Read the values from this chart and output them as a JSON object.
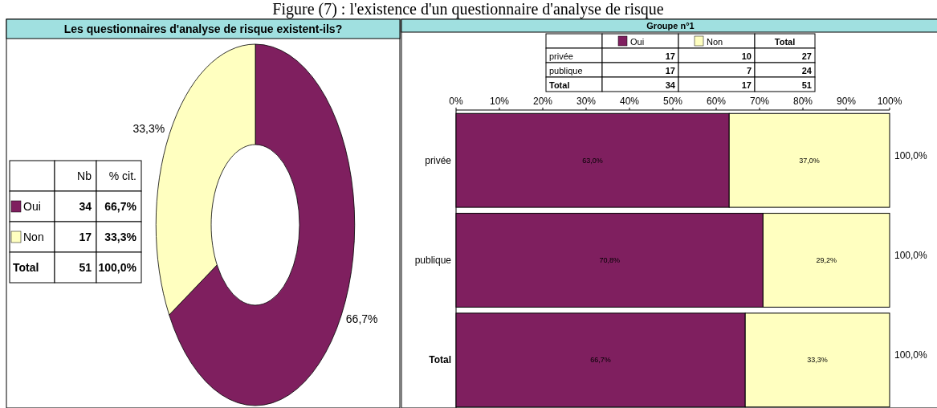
{
  "chart_data": [
    {
      "type": "donut",
      "title": "Les questionnaires d'analyse de risque existent-ils?",
      "categories": [
        "Oui",
        "Non"
      ],
      "values": [
        66.7,
        33.3
      ],
      "colors": [
        "#7f1f5f",
        "#ffffc0"
      ],
      "value_labels": [
        "66,7%",
        "33,3%"
      ],
      "totals": [
        "100,0%"
      ],
      "legend": "left",
      "annotations": [
        "Figure (7) : l'existence d'un questionnaire d'analyse de risque",
        "Nb",
        "% cit.",
        "34",
        "17",
        "Total",
        "51"
      ]
    },
    {
      "type": "bar",
      "title": "Groupe n°1",
      "orientation": "horizontal",
      "stacked": true,
      "categories": [
        "privée",
        "publique",
        "Total"
      ],
      "legend": "top",
      "series": [
        {
          "name": "Oui",
          "color": "#7f1f5f",
          "values": [
            63.0,
            70.8,
            66.7
          ],
          "value_labels": [
            "63,0%",
            "70,8%",
            "66,7%"
          ]
        },
        {
          "name": "Non",
          "color": "#ffffc0",
          "values": [
            37.0,
            29.2,
            33.3
          ],
          "value_labels": [
            "37,0%",
            "29,2%",
            "33,3%"
          ]
        }
      ],
      "totals": [
        "100,0%",
        "100,0%",
        "100,0%"
      ],
      "xlim": [
        0,
        100
      ],
      "xticks": [
        {
          "value": 0,
          "label": "0%"
        },
        {
          "value": 10,
          "label": "10%"
        },
        {
          "value": 20,
          "label": "20%"
        },
        {
          "value": 30,
          "label": "30%"
        },
        {
          "value": 40,
          "label": "40%"
        },
        {
          "value": 50,
          "label": "50%"
        },
        {
          "value": 60,
          "label": "60%"
        },
        {
          "value": 70,
          "label": "70%"
        },
        {
          "value": 80,
          "label": "80%"
        },
        {
          "value": 90,
          "label": "90%"
        },
        {
          "value": 100,
          "label": "100%"
        }
      ],
      "annotations": [
        "Total",
        "17",
        "10",
        "27",
        "17",
        "7",
        "24",
        "34",
        "17",
        "51"
      ]
    }
  ]
}
